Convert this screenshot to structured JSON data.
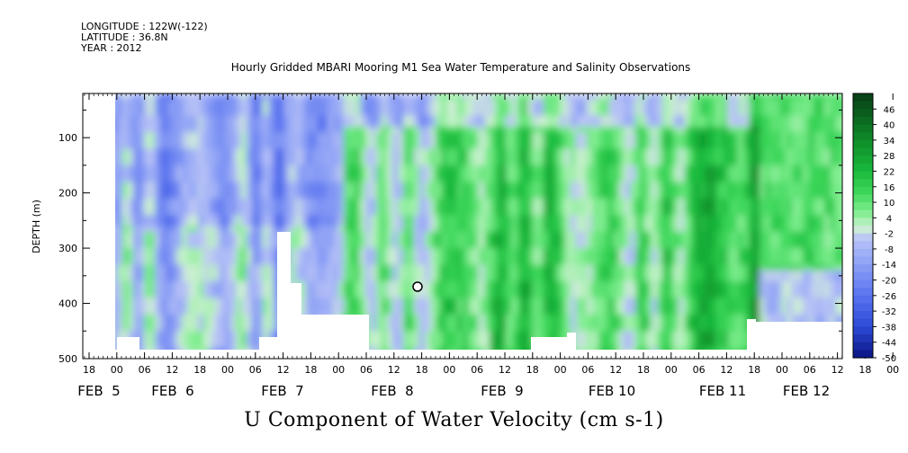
{
  "header": {
    "longitude": "LONGITUDE : 122W(-122)",
    "latitude": "LATITUDE : 36.8N",
    "year": "YEAR : 2012"
  },
  "chart_data": {
    "type": "heatmap",
    "title": "Hourly Gridded MBARI Mooring M1 Sea Water Temperature and Salinity Observations",
    "caption": "U Component of Water Velocity (cm s-1)",
    "ylabel": "DEPTH (m)",
    "xlabel": "",
    "y_ticks": [
      "100",
      "200",
      "300",
      "400",
      "500"
    ],
    "ylim": [
      500,
      20
    ],
    "x_hour_ticks": [
      "18",
      "00",
      "06",
      "12",
      "18",
      "00",
      "06",
      "12",
      "18",
      "00",
      "06",
      "12",
      "18",
      "00",
      "06",
      "12",
      "18",
      "00",
      "06",
      "12",
      "18",
      "00",
      "06",
      "12",
      "18",
      "00",
      "06",
      "12",
      "18",
      "00",
      "06",
      "12"
    ],
    "x_day_labels": [
      "FEB  5",
      "FEB  6",
      "FEB  7",
      "FEB  8",
      "FEB  9",
      "FEB 10",
      "FEB 11",
      "FEB 12"
    ],
    "colorbar_labels": [
      "46",
      "40",
      "34",
      "28",
      "22",
      "16",
      "10",
      "4",
      "-2",
      "-8",
      "-14",
      "-20",
      "-26",
      "-32",
      "-38",
      "-44",
      "-50"
    ],
    "colorbar_range": [
      -50,
      52
    ],
    "colors": {
      "positive_strong": "#0a4a1a",
      "positive": "#22c24a",
      "positive_light": "#8ff09a",
      "negative_light": "#b8bff4",
      "negative": "#6f84ee",
      "negative_strong": "#0a1a8a"
    }
  }
}
